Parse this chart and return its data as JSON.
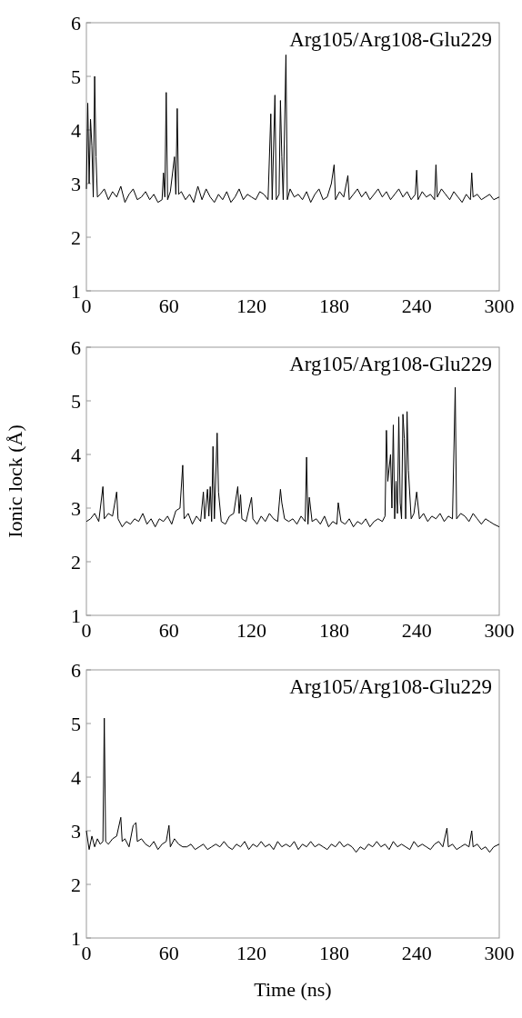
{
  "chart_data": [
    {
      "type": "line",
      "annotations": [
        "Arg105/Arg108-Glu229"
      ],
      "xlim": [
        0,
        300
      ],
      "xticks": [
        0,
        60,
        120,
        180,
        240,
        300
      ],
      "ylim": [
        1,
        6
      ],
      "yticks": [
        1,
        2,
        3,
        4,
        5,
        6
      ],
      "grid": false,
      "series": [
        {
          "color": "#000000",
          "x": [
            0,
            1,
            2,
            3,
            4,
            5,
            6,
            7,
            8,
            10,
            13,
            16,
            19,
            22,
            25,
            28,
            31,
            34,
            37,
            40,
            43,
            46,
            49,
            52,
            55,
            56,
            57,
            58,
            59,
            61,
            64,
            65,
            66,
            67,
            69,
            72,
            75,
            78,
            81,
            84,
            87,
            90,
            93,
            96,
            99,
            102,
            105,
            108,
            111,
            114,
            117,
            120,
            123,
            126,
            129,
            132,
            134,
            135,
            137,
            138,
            140,
            141,
            142,
            143,
            145,
            146,
            148,
            151,
            154,
            157,
            160,
            163,
            166,
            169,
            172,
            175,
            178,
            180,
            181,
            184,
            187,
            190,
            191,
            194,
            197,
            200,
            203,
            206,
            209,
            212,
            215,
            218,
            221,
            224,
            227,
            230,
            233,
            236,
            239,
            240,
            241,
            244,
            247,
            250,
            253,
            254,
            255,
            258,
            261,
            264,
            267,
            270,
            273,
            276,
            279,
            280,
            281,
            284,
            287,
            290,
            293,
            296,
            300
          ],
          "values": [
            2.9,
            4.5,
            3.0,
            4.2,
            3.7,
            2.75,
            5.0,
            3.5,
            2.75,
            2.8,
            2.9,
            2.7,
            2.85,
            2.75,
            2.95,
            2.65,
            2.8,
            2.9,
            2.7,
            2.75,
            2.85,
            2.7,
            2.8,
            2.65,
            2.7,
            3.2,
            2.75,
            4.7,
            2.7,
            2.85,
            3.5,
            2.8,
            4.4,
            2.8,
            2.85,
            2.7,
            2.8,
            2.65,
            2.95,
            2.7,
            2.9,
            2.75,
            2.65,
            2.8,
            2.7,
            2.85,
            2.65,
            2.75,
            2.9,
            2.7,
            2.8,
            2.75,
            2.7,
            2.85,
            2.8,
            2.7,
            4.3,
            2.7,
            4.65,
            2.7,
            2.8,
            4.55,
            3.5,
            2.7,
            5.4,
            2.7,
            2.9,
            2.75,
            2.8,
            2.7,
            2.85,
            2.65,
            2.8,
            2.9,
            2.7,
            2.75,
            3.0,
            3.35,
            2.7,
            2.85,
            2.75,
            3.15,
            2.7,
            2.8,
            2.9,
            2.75,
            2.85,
            2.7,
            2.8,
            2.9,
            2.75,
            2.85,
            2.7,
            2.8,
            2.9,
            2.75,
            2.85,
            2.7,
            2.8,
            3.25,
            2.7,
            2.85,
            2.75,
            2.8,
            2.7,
            3.35,
            2.75,
            2.9,
            2.8,
            2.7,
            2.85,
            2.75,
            2.65,
            2.8,
            2.7,
            3.2,
            2.75,
            2.8,
            2.7,
            2.75,
            2.8,
            2.7,
            2.75
          ]
        }
      ]
    },
    {
      "type": "line",
      "annotations": [
        "Arg105/Arg108-Glu229"
      ],
      "ylabel": "Ionic lock (Å)",
      "xlim": [
        0,
        300
      ],
      "xticks": [
        0,
        60,
        120,
        180,
        240,
        300
      ],
      "ylim": [
        1,
        6
      ],
      "yticks": [
        1,
        2,
        3,
        4,
        5,
        6
      ],
      "grid": false,
      "series": [
        {
          "color": "#000000",
          "x": [
            0,
            3,
            6,
            9,
            12,
            13,
            16,
            19,
            22,
            23,
            26,
            29,
            32,
            35,
            38,
            41,
            44,
            47,
            50,
            53,
            56,
            59,
            62,
            65,
            68,
            70,
            71,
            74,
            77,
            80,
            83,
            85,
            86,
            88,
            89,
            90,
            91,
            92,
            93,
            95,
            96,
            98,
            101,
            104,
            107,
            110,
            111,
            112,
            113,
            116,
            120,
            121,
            124,
            127,
            130,
            133,
            136,
            139,
            141,
            142,
            144,
            147,
            150,
            153,
            156,
            159,
            160,
            161,
            162,
            164,
            167,
            170,
            173,
            176,
            179,
            182,
            183,
            185,
            188,
            191,
            194,
            197,
            200,
            203,
            206,
            209,
            212,
            215,
            217,
            218,
            219,
            221,
            222,
            223,
            224,
            225,
            226,
            227,
            228,
            229,
            230,
            231,
            232,
            233,
            234,
            236,
            238,
            240,
            242,
            245,
            248,
            251,
            254,
            257,
            260,
            263,
            266,
            268,
            269,
            272,
            275,
            278,
            281,
            284,
            287,
            290,
            293,
            296,
            300
          ],
          "values": [
            2.75,
            2.8,
            2.9,
            2.75,
            3.4,
            2.8,
            2.9,
            2.85,
            3.3,
            2.8,
            2.65,
            2.75,
            2.7,
            2.8,
            2.75,
            2.9,
            2.7,
            2.8,
            2.65,
            2.8,
            2.75,
            2.85,
            2.7,
            2.95,
            3.0,
            3.8,
            2.8,
            2.9,
            2.7,
            2.85,
            2.75,
            3.3,
            2.8,
            3.35,
            2.85,
            3.4,
            2.75,
            4.15,
            2.8,
            4.4,
            3.3,
            2.75,
            2.7,
            2.85,
            2.9,
            3.4,
            2.9,
            3.25,
            2.8,
            2.75,
            3.2,
            2.8,
            2.7,
            2.85,
            2.75,
            2.9,
            2.8,
            2.75,
            3.35,
            3.1,
            2.8,
            2.75,
            2.8,
            2.7,
            2.85,
            2.75,
            3.95,
            2.7,
            3.2,
            2.75,
            2.8,
            2.7,
            2.85,
            2.65,
            2.75,
            2.7,
            3.1,
            2.75,
            2.7,
            2.8,
            2.65,
            2.75,
            2.7,
            2.8,
            2.65,
            2.75,
            2.8,
            2.75,
            2.85,
            4.45,
            3.5,
            4.0,
            3.0,
            4.55,
            2.8,
            3.5,
            2.9,
            4.7,
            3.1,
            2.8,
            4.75,
            4.3,
            2.8,
            4.8,
            3.7,
            2.8,
            2.9,
            3.3,
            2.8,
            2.9,
            2.75,
            2.85,
            2.8,
            2.9,
            2.75,
            2.85,
            2.8,
            5.25,
            2.8,
            2.9,
            2.85,
            2.75,
            2.9,
            2.8,
            2.7,
            2.8,
            2.75,
            2.7,
            2.65
          ]
        }
      ]
    },
    {
      "type": "line",
      "annotations": [
        "Arg105/Arg108-Glu229"
      ],
      "xlabel": "Time (ns)",
      "xlim": [
        0,
        300
      ],
      "xticks": [
        0,
        60,
        120,
        180,
        240,
        300
      ],
      "ylim": [
        1,
        6
      ],
      "yticks": [
        1,
        2,
        3,
        4,
        5,
        6
      ],
      "grid": false,
      "series": [
        {
          "color": "#000000",
          "x": [
            0,
            2,
            4,
            6,
            8,
            10,
            12,
            13,
            14,
            16,
            19,
            22,
            25,
            26,
            28,
            31,
            34,
            36,
            37,
            40,
            43,
            46,
            49,
            52,
            55,
            58,
            60,
            61,
            64,
            67,
            70,
            73,
            76,
            79,
            82,
            85,
            88,
            91,
            94,
            97,
            100,
            103,
            106,
            109,
            112,
            115,
            118,
            121,
            124,
            127,
            130,
            133,
            136,
            139,
            142,
            145,
            148,
            151,
            154,
            157,
            160,
            163,
            166,
            169,
            172,
            175,
            178,
            181,
            184,
            187,
            190,
            193,
            196,
            199,
            202,
            205,
            208,
            211,
            214,
            217,
            220,
            223,
            226,
            229,
            232,
            235,
            238,
            241,
            244,
            247,
            250,
            253,
            256,
            259,
            262,
            263,
            266,
            269,
            272,
            275,
            278,
            280,
            281,
            284,
            287,
            290,
            293,
            296,
            300
          ],
          "values": [
            3.0,
            2.65,
            2.9,
            2.7,
            2.85,
            2.75,
            2.8,
            5.1,
            2.8,
            2.75,
            2.85,
            2.9,
            3.25,
            2.8,
            2.85,
            2.7,
            3.1,
            3.15,
            2.8,
            2.85,
            2.75,
            2.7,
            2.8,
            2.65,
            2.75,
            2.8,
            3.1,
            2.7,
            2.85,
            2.75,
            2.7,
            2.7,
            2.75,
            2.65,
            2.7,
            2.75,
            2.65,
            2.7,
            2.75,
            2.7,
            2.8,
            2.7,
            2.65,
            2.75,
            2.7,
            2.8,
            2.65,
            2.75,
            2.7,
            2.8,
            2.7,
            2.75,
            2.65,
            2.8,
            2.7,
            2.75,
            2.7,
            2.8,
            2.65,
            2.75,
            2.7,
            2.8,
            2.7,
            2.75,
            2.7,
            2.65,
            2.75,
            2.7,
            2.8,
            2.7,
            2.75,
            2.7,
            2.6,
            2.7,
            2.65,
            2.75,
            2.7,
            2.8,
            2.7,
            2.75,
            2.65,
            2.8,
            2.7,
            2.75,
            2.7,
            2.65,
            2.8,
            2.7,
            2.75,
            2.7,
            2.65,
            2.75,
            2.8,
            2.7,
            3.05,
            2.7,
            2.75,
            2.65,
            2.7,
            2.75,
            2.7,
            3.0,
            2.7,
            2.75,
            2.65,
            2.7,
            2.6,
            2.7,
            2.75
          ]
        }
      ]
    }
  ]
}
